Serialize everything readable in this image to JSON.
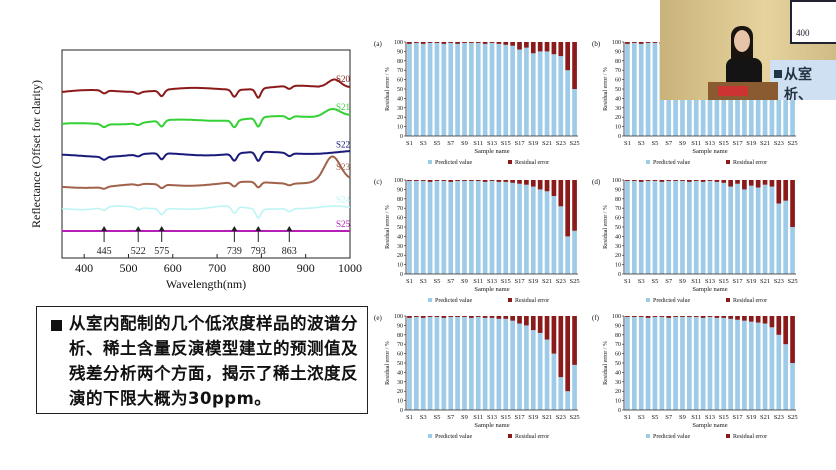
{
  "spectra": {
    "ylabel": "Reflectance (Offset for clarity)",
    "xlabel": "Wavelength(nm)",
    "x_ticks": [
      "400",
      "500",
      "600",
      "700",
      "800",
      "900",
      "1000"
    ],
    "xlim": [
      350,
      1000
    ],
    "series": [
      {
        "name": "S20",
        "color": "#8b1a1a"
      },
      {
        "name": "S21",
        "color": "#34d134"
      },
      {
        "name": "S22",
        "color": "#1a1a7a"
      },
      {
        "name": "S23",
        "color": "#a0624a"
      },
      {
        "name": "S24",
        "color": "#bdf5f5"
      },
      {
        "name": "S25",
        "color": "#b51fb5"
      }
    ],
    "markers": [
      {
        "label": "445",
        "x": 445
      },
      {
        "label": "522",
        "x": 522
      },
      {
        "label": "575",
        "x": 575
      },
      {
        "label": "739",
        "x": 739
      },
      {
        "label": "793",
        "x": 793
      },
      {
        "label": "863",
        "x": 863
      }
    ]
  },
  "bullet": {
    "text": "从室内配制的几个低浓度样品的波谱分析、稀土含量反演模型建立的预测值及残差分析两个方面，揭示了稀土浓度反演的下限大概为30ppm。"
  },
  "video": {
    "screen_label": "400",
    "slide_text_1": "从室",
    "slide_text_2": "析、"
  },
  "residual_panels": {
    "ylabel": "Residual error / %",
    "xlabel": "Sample name",
    "y_ticks": [
      "0",
      "10",
      "20",
      "30",
      "40",
      "50",
      "60",
      "70",
      "80",
      "90",
      "100"
    ],
    "x_ticks": [
      "S1",
      "S3",
      "S5",
      "S7",
      "S9",
      "S11",
      "S13",
      "S15",
      "S17",
      "S19",
      "S21",
      "S23",
      "S25"
    ],
    "legend_predicted": "Predicted value",
    "legend_residual": "Residual error",
    "predicted_color": "#9ecbe8",
    "residual_color": "#8b1a1a"
  },
  "chart_data": [
    {
      "type": "bar",
      "panel": "(a)",
      "categories": [
        "S1",
        "S2",
        "S3",
        "S4",
        "S5",
        "S6",
        "S7",
        "S8",
        "S9",
        "S10",
        "S11",
        "S12",
        "S13",
        "S14",
        "S15",
        "S16",
        "S17",
        "S18",
        "S19",
        "S20",
        "S21",
        "S22",
        "S23",
        "S24",
        "S25"
      ],
      "series": [
        {
          "name": "Predicted value",
          "values": [
            98,
            99,
            98,
            99,
            99,
            98,
            99,
            98,
            99,
            99,
            99,
            98,
            99,
            98,
            97,
            96,
            92,
            94,
            88,
            90,
            90,
            87,
            85,
            70,
            50
          ]
        },
        {
          "name": "Residual error",
          "values": [
            2,
            1,
            2,
            1,
            1,
            2,
            1,
            2,
            1,
            1,
            1,
            2,
            1,
            2,
            3,
            4,
            8,
            6,
            12,
            10,
            10,
            13,
            15,
            30,
            50
          ]
        }
      ],
      "xlabel": "Sample name",
      "ylabel": "Residual error / %",
      "ylim": [
        0,
        100
      ]
    },
    {
      "type": "bar",
      "panel": "(b)",
      "categories": [
        "S1",
        "S2",
        "S3",
        "S4",
        "S5",
        "S6",
        "S7",
        "S8",
        "S9",
        "S10",
        "S11",
        "S12",
        "S13",
        "S14",
        "S15",
        "S16",
        "S17",
        "S18",
        "S19",
        "S20",
        "S21",
        "S22",
        "S23",
        "S24",
        "S25"
      ],
      "series": [
        {
          "name": "Predicted value",
          "values": [
            98,
            99,
            98,
            99,
            99,
            98,
            99,
            98,
            99,
            99,
            99,
            98,
            99,
            98,
            97,
            96,
            95,
            94,
            93,
            92,
            91,
            90,
            88,
            85,
            80
          ]
        },
        {
          "name": "Residual error",
          "values": [
            2,
            1,
            2,
            1,
            1,
            2,
            1,
            2,
            1,
            1,
            1,
            2,
            1,
            2,
            3,
            4,
            5,
            6,
            7,
            8,
            9,
            10,
            12,
            15,
            20
          ]
        }
      ],
      "xlabel": "Sample name",
      "ylabel": "Residual error / %",
      "ylim": [
        0,
        100
      ]
    },
    {
      "type": "bar",
      "panel": "(c)",
      "categories": [
        "S1",
        "S2",
        "S3",
        "S4",
        "S5",
        "S6",
        "S7",
        "S8",
        "S9",
        "S10",
        "S11",
        "S12",
        "S13",
        "S14",
        "S15",
        "S16",
        "S17",
        "S18",
        "S19",
        "S20",
        "S21",
        "S22",
        "S23",
        "S24",
        "S25"
      ],
      "series": [
        {
          "name": "Predicted value",
          "values": [
            99,
            99,
            99,
            98,
            99,
            99,
            98,
            99,
            99,
            99,
            99,
            98,
            99,
            98,
            98,
            97,
            96,
            95,
            93,
            90,
            88,
            83,
            72,
            40,
            46
          ]
        },
        {
          "name": "Residual error",
          "values": [
            1,
            1,
            1,
            2,
            1,
            1,
            2,
            1,
            1,
            1,
            1,
            2,
            1,
            2,
            2,
            3,
            4,
            5,
            7,
            10,
            12,
            17,
            28,
            60,
            54
          ]
        }
      ],
      "xlabel": "Sample name",
      "ylabel": "Residual error / %",
      "ylim": [
        0,
        100
      ]
    },
    {
      "type": "bar",
      "panel": "(d)",
      "categories": [
        "S1",
        "S2",
        "S3",
        "S4",
        "S5",
        "S6",
        "S7",
        "S8",
        "S9",
        "S10",
        "S11",
        "S12",
        "S13",
        "S14",
        "S15",
        "S16",
        "S17",
        "S18",
        "S19",
        "S20",
        "S21",
        "S22",
        "S23",
        "S24",
        "S25"
      ],
      "series": [
        {
          "name": "Predicted value",
          "values": [
            99,
            99,
            98,
            99,
            99,
            98,
            99,
            99,
            99,
            98,
            99,
            98,
            99,
            98,
            97,
            93,
            96,
            90,
            94,
            92,
            95,
            93,
            75,
            78,
            50
          ]
        },
        {
          "name": "Residual error",
          "values": [
            1,
            1,
            2,
            1,
            1,
            2,
            1,
            1,
            1,
            2,
            1,
            2,
            1,
            2,
            3,
            7,
            4,
            10,
            6,
            8,
            5,
            7,
            25,
            22,
            50
          ]
        }
      ],
      "xlabel": "Sample name",
      "ylabel": "Residual error / %",
      "ylim": [
        0,
        100
      ]
    },
    {
      "type": "bar",
      "panel": "(e)",
      "categories": [
        "S1",
        "S2",
        "S3",
        "S4",
        "S5",
        "S6",
        "S7",
        "S8",
        "S9",
        "S10",
        "S11",
        "S12",
        "S13",
        "S14",
        "S15",
        "S16",
        "S17",
        "S18",
        "S19",
        "S20",
        "S21",
        "S22",
        "S23",
        "S24",
        "S25"
      ],
      "series": [
        {
          "name": "Predicted value",
          "values": [
            98,
            99,
            98,
            99,
            99,
            98,
            99,
            99,
            99,
            98,
            99,
            98,
            98,
            97,
            97,
            95,
            92,
            90,
            85,
            82,
            75,
            60,
            35,
            20,
            48
          ]
        },
        {
          "name": "Residual error",
          "values": [
            2,
            1,
            2,
            1,
            1,
            2,
            1,
            1,
            1,
            2,
            1,
            2,
            2,
            3,
            3,
            5,
            8,
            10,
            15,
            18,
            25,
            40,
            65,
            80,
            52
          ]
        }
      ],
      "xlabel": "Sample name",
      "ylabel": "Residual error / %",
      "ylim": [
        0,
        100
      ]
    },
    {
      "type": "bar",
      "panel": "(f)",
      "categories": [
        "S1",
        "S2",
        "S3",
        "S4",
        "S5",
        "S6",
        "S7",
        "S8",
        "S9",
        "S10",
        "S11",
        "S12",
        "S13",
        "S14",
        "S15",
        "S16",
        "S17",
        "S18",
        "S19",
        "S20",
        "S21",
        "S22",
        "S23",
        "S24",
        "S25"
      ],
      "series": [
        {
          "name": "Predicted value",
          "values": [
            99,
            99,
            99,
            98,
            99,
            99,
            98,
            99,
            99,
            99,
            99,
            98,
            99,
            98,
            98,
            97,
            96,
            95,
            94,
            93,
            92,
            88,
            80,
            70,
            50
          ]
        },
        {
          "name": "Residual error",
          "values": [
            1,
            1,
            1,
            2,
            1,
            1,
            2,
            1,
            1,
            1,
            1,
            2,
            1,
            2,
            2,
            3,
            4,
            5,
            6,
            7,
            8,
            12,
            20,
            30,
            50
          ]
        }
      ],
      "xlabel": "Sample name",
      "ylabel": "Residual error / %",
      "ylim": [
        0,
        100
      ]
    }
  ]
}
